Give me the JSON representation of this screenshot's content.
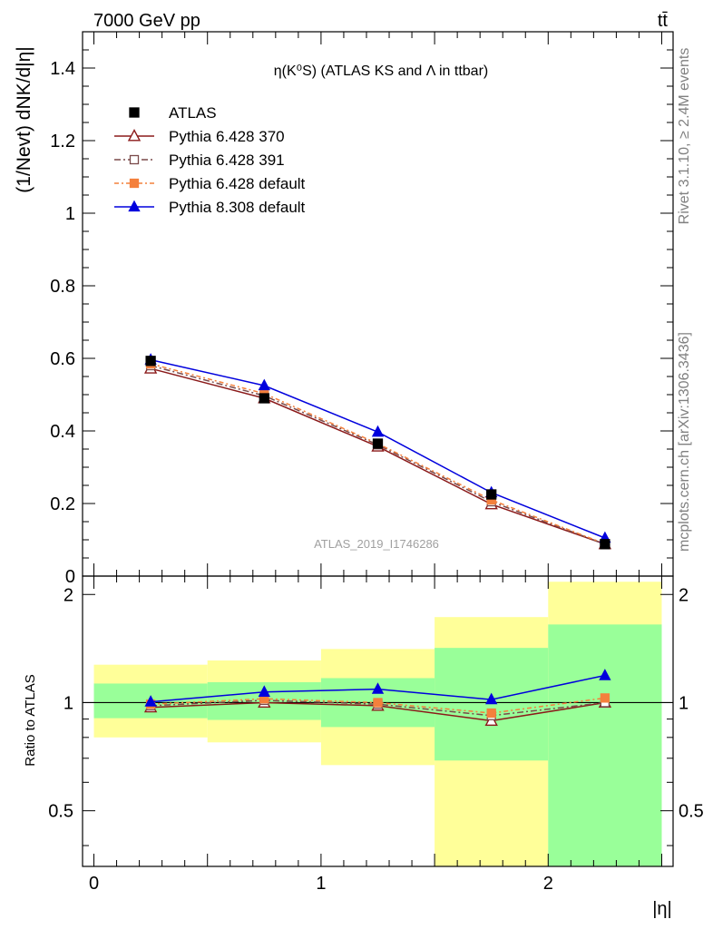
{
  "header": {
    "left": "7000 GeV pp",
    "right": "tt̄"
  },
  "side_labels": {
    "rivet": "Rivet 3.1.10, ≥ 2.4M events",
    "mcplots": "mcplots.cern.ch [arXiv:1306.3436]"
  },
  "colors": {
    "atlas": "#000000",
    "p370": "#8b1a1a",
    "p391": "#7a4a4a",
    "pdef": "#f4803c",
    "p8": "#0000dd",
    "band_inner": "#99ff99",
    "band_outer": "#ffff99"
  },
  "chart_data": [
    {
      "type": "line",
      "title": "η(K⁰S) (ATLAS KS and Λ in ttbar)",
      "ylabel": "(1/Nevt) dNK/d|η|",
      "xlim": [
        -0.05,
        2.55
      ],
      "ylim": [
        0,
        1.5
      ],
      "yticks": [
        0,
        0.2,
        0.4,
        0.6,
        0.8,
        1,
        1.2,
        1.4
      ],
      "ytick_labels": [
        "0",
        "0.2",
        "0.4",
        "0.6",
        "0.8",
        "1",
        "1.2",
        "1.4"
      ],
      "watermark": "ATLAS_2019_I1746286",
      "legend_position": "top-left",
      "x": [
        0.25,
        0.75,
        1.25,
        1.75,
        2.25
      ],
      "series": [
        {
          "name": "ATLAS",
          "key": "atlas",
          "values": [
            0.593,
            0.49,
            0.365,
            0.225,
            0.088
          ]
        },
        {
          "name": "Pythia 6.428 370",
          "key": "p370",
          "values": [
            0.572,
            0.49,
            0.357,
            0.198,
            0.088
          ]
        },
        {
          "name": "Pythia 6.428 391",
          "key": "p391",
          "values": [
            0.58,
            0.497,
            0.362,
            0.205,
            0.088
          ]
        },
        {
          "name": "Pythia 6.428 default",
          "key": "pdef",
          "values": [
            0.585,
            0.503,
            0.365,
            0.21,
            0.089
          ]
        },
        {
          "name": "Pythia 8.308 default",
          "key": "p8",
          "values": [
            0.596,
            0.525,
            0.397,
            0.23,
            0.105
          ]
        }
      ]
    },
    {
      "type": "line",
      "ylabel": "Ratio to ATLAS",
      "xlabel": "|η|",
      "xlim": [
        -0.05,
        2.55
      ],
      "ylim": [
        0.35,
        2.25
      ],
      "yticks": [
        0.5,
        1,
        2
      ],
      "ytick_labels": [
        "0.5",
        "1",
        "2"
      ],
      "xticks": [
        0,
        1,
        2
      ],
      "xtick_labels": [
        "0",
        "1",
        "2"
      ],
      "x": [
        0.25,
        0.75,
        1.25,
        1.75,
        2.25
      ],
      "bins": [
        [
          0,
          0.5
        ],
        [
          0.5,
          1.0
        ],
        [
          1.0,
          1.5
        ],
        [
          1.5,
          2.0
        ],
        [
          2.0,
          2.5
        ]
      ],
      "band_inner": [
        [
          0.905,
          1.13
        ],
        [
          0.895,
          1.14
        ],
        [
          0.855,
          1.17
        ],
        [
          0.69,
          1.42
        ],
        [
          0.35,
          1.65
        ]
      ],
      "band_outer": [
        [
          0.8,
          1.275
        ],
        [
          0.775,
          1.31
        ],
        [
          0.67,
          1.41
        ],
        [
          0.35,
          1.73
        ],
        [
          0.35,
          2.17
        ]
      ],
      "series": [
        {
          "name": "Pythia 6.428 370",
          "key": "p370",
          "values": [
            0.97,
            1.0,
            0.98,
            0.89,
            1.0
          ]
        },
        {
          "name": "Pythia 6.428 391",
          "key": "p391",
          "values": [
            0.98,
            1.015,
            0.99,
            0.92,
            1.0
          ]
        },
        {
          "name": "Pythia 6.428 default",
          "key": "pdef",
          "values": [
            0.99,
            1.025,
            1.0,
            0.935,
            1.03
          ]
        },
        {
          "name": "Pythia 8.308 default",
          "key": "p8",
          "values": [
            1.005,
            1.07,
            1.09,
            1.02,
            1.19
          ]
        }
      ]
    }
  ]
}
